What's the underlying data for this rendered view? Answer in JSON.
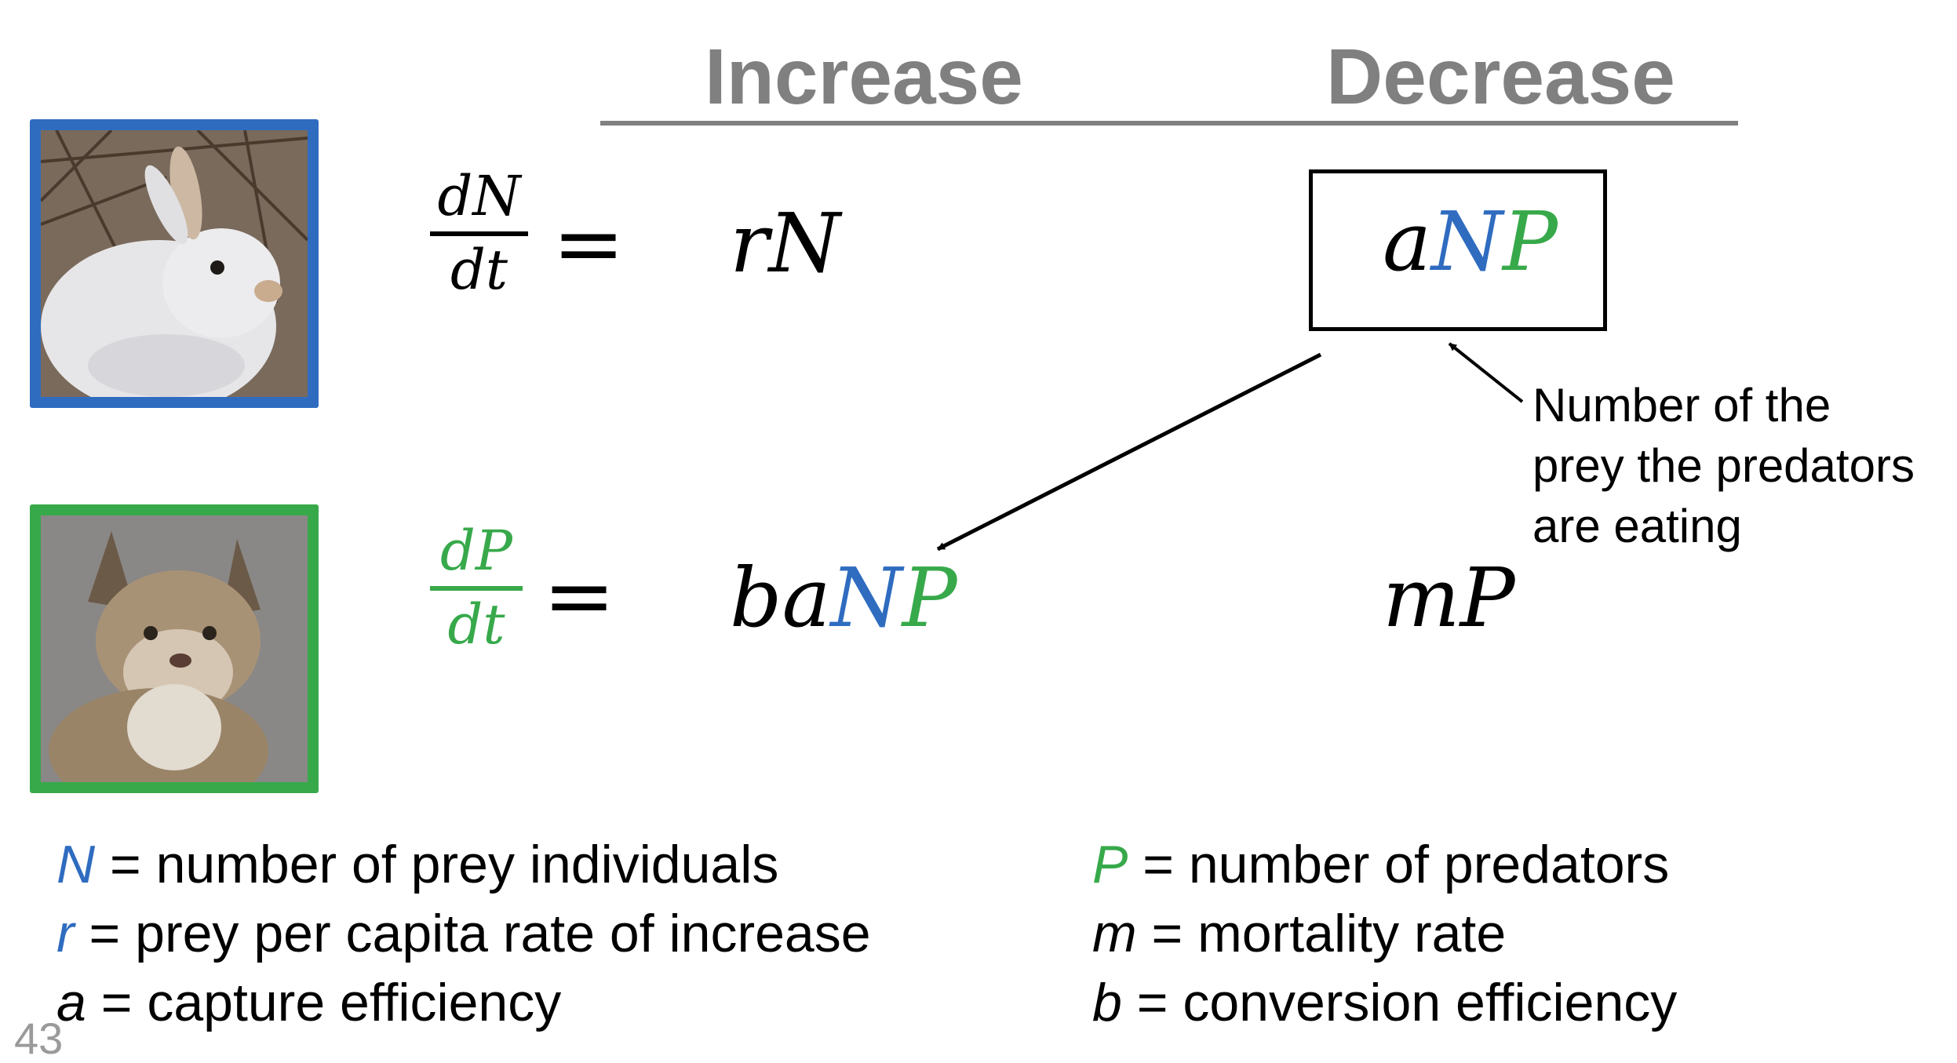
{
  "headers": {
    "increase": "Increase",
    "decrease": "Decrease"
  },
  "prey_equation": {
    "numerator": "dN",
    "denominator": "dt",
    "equals": "=",
    "increase_term": "rN",
    "decrease_term": {
      "a": "a",
      "N": "N",
      "P": "P"
    }
  },
  "predator_equation": {
    "numerator": "dP",
    "denominator": "dt",
    "equals": "=",
    "increase_term": {
      "ba": "ba",
      "N": "N",
      "P": "P"
    },
    "decrease_term": "mP"
  },
  "annotation": {
    "lines": [
      "Number of the",
      "prey the predators",
      "are eating"
    ]
  },
  "legend_left": [
    {
      "symbol": "N",
      "text": " = number of prey individuals",
      "symbol_color": "#2f6cc0"
    },
    {
      "symbol": "r",
      "text": " = prey per capita rate of increase",
      "symbol_color": "#2f6cc0"
    },
    {
      "symbol": "a",
      "text": " = capture efficiency",
      "symbol_color": "#000000"
    }
  ],
  "legend_right": [
    {
      "symbol": "P",
      "text": " = number of predators",
      "symbol_color": "#37a94a"
    },
    {
      "symbol": "m",
      "text": " = mortality rate",
      "symbol_color": "#000000"
    },
    {
      "symbol": "b",
      "text": " = conversion efficiency",
      "symbol_color": "#000000"
    }
  ],
  "slide_number": "43",
  "colors": {
    "prey_blue": "#2f6cc0",
    "predator_green": "#37a94a",
    "header_gray": "#808080"
  },
  "images": {
    "prey": "snowshoe-hare",
    "predator": "lynx"
  }
}
